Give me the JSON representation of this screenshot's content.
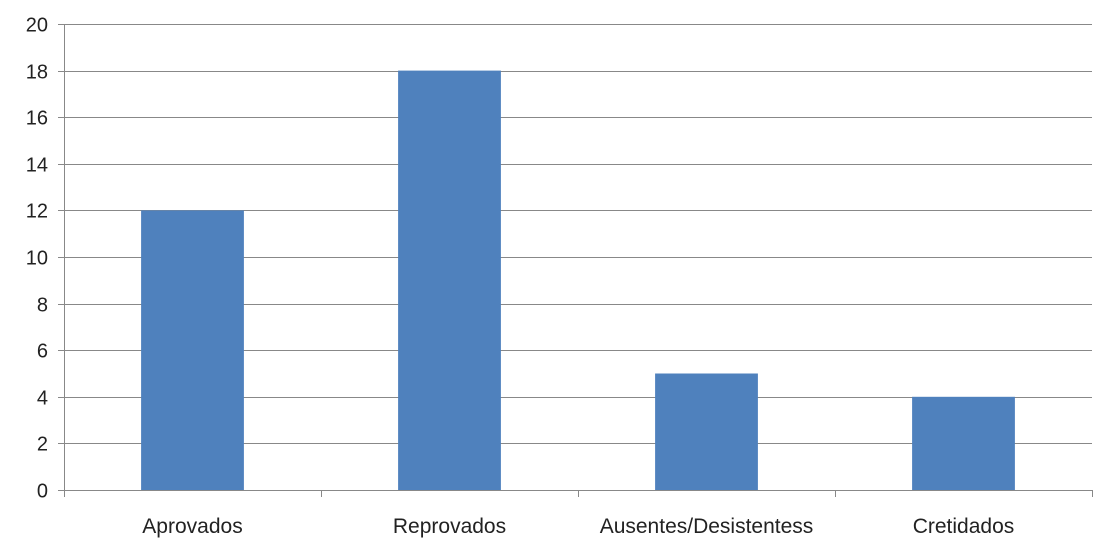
{
  "chart_data": {
    "type": "bar",
    "categories": [
      "Aprovados",
      "Reprovados",
      "Ausentes/Desistentess",
      "Cretidados"
    ],
    "values": [
      12,
      18,
      5,
      4
    ],
    "ylim": [
      0,
      20
    ],
    "yticks": [
      0,
      2,
      4,
      6,
      8,
      10,
      12,
      14,
      16,
      18,
      20
    ],
    "grid": true,
    "legend": "none",
    "colors": {
      "bar": "#4f81bd",
      "grid": "#888888",
      "axis": "#888888"
    }
  }
}
